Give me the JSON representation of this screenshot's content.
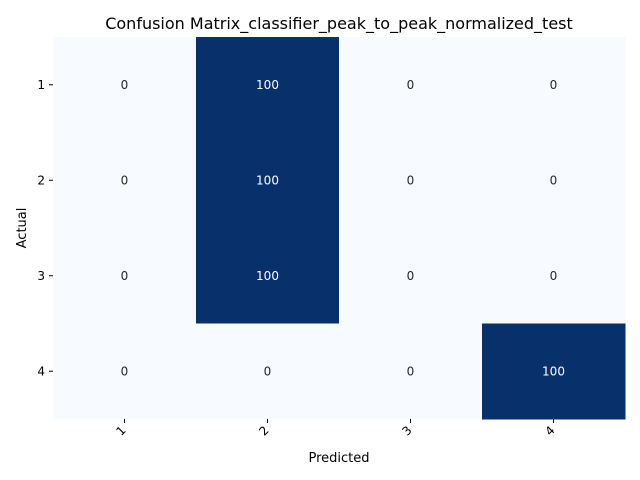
{
  "chart_data": {
    "type": "heatmap",
    "title": "Confusion Matrix_classifier_peak_to_peak_normalized_test",
    "xlabel": "Predicted",
    "ylabel": "Actual",
    "x_categories": [
      "1",
      "2",
      "3",
      "4"
    ],
    "y_categories": [
      "1",
      "2",
      "3",
      "4"
    ],
    "values": [
      [
        0,
        100,
        0,
        0
      ],
      [
        0,
        100,
        0,
        0
      ],
      [
        0,
        100,
        0,
        0
      ],
      [
        0,
        0,
        0,
        100
      ]
    ],
    "colormap": "Blues",
    "color_low": "#f7fbff",
    "color_high": "#08306b",
    "vmin": 0,
    "vmax": 100,
    "annotations": true,
    "colorbar": false,
    "grid": false
  }
}
